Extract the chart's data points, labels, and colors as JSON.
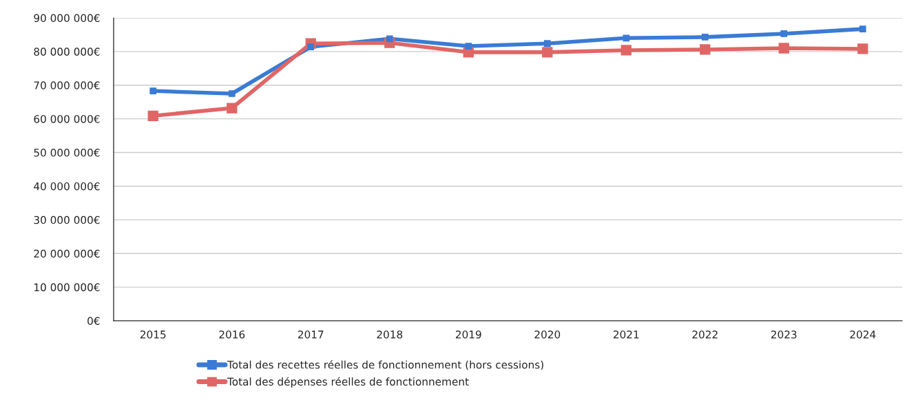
{
  "chart_data": {
    "type": "line",
    "categories": [
      "2015",
      "2016",
      "2017",
      "2018",
      "2019",
      "2020",
      "2021",
      "2022",
      "2023",
      "2024"
    ],
    "series": [
      {
        "name": "Total des recettes réelles de fonctionnement (hors cessions)",
        "color": "#3a7bd5",
        "values": [
          68300000,
          67500000,
          81400000,
          83800000,
          81600000,
          82400000,
          84000000,
          84300000,
          85300000,
          86700000
        ]
      },
      {
        "name": "Total des dépenses réelles de fonctionnement",
        "color": "#e06666",
        "values": [
          60900000,
          63200000,
          82400000,
          82600000,
          79800000,
          79800000,
          80400000,
          80600000,
          81000000,
          80800000
        ]
      }
    ],
    "ylim": [
      0,
      90000000
    ],
    "yticks": [
      {
        "value": 0,
        "label": "0€"
      },
      {
        "value": 10000000,
        "label": "10 000 000€"
      },
      {
        "value": 20000000,
        "label": "20 000 000€"
      },
      {
        "value": 30000000,
        "label": "30 000 000€"
      },
      {
        "value": 40000000,
        "label": "40 000 000€"
      },
      {
        "value": 50000000,
        "label": "50 000 000€"
      },
      {
        "value": 60000000,
        "label": "60 000 000€"
      },
      {
        "value": 70000000,
        "label": "70 000 000€"
      },
      {
        "value": 80000000,
        "label": "80 000 000€"
      },
      {
        "value": 90000000,
        "label": "90 000 000€"
      }
    ],
    "grid": "y",
    "legend": "bottom",
    "marker": "square",
    "line_style": "solid"
  }
}
